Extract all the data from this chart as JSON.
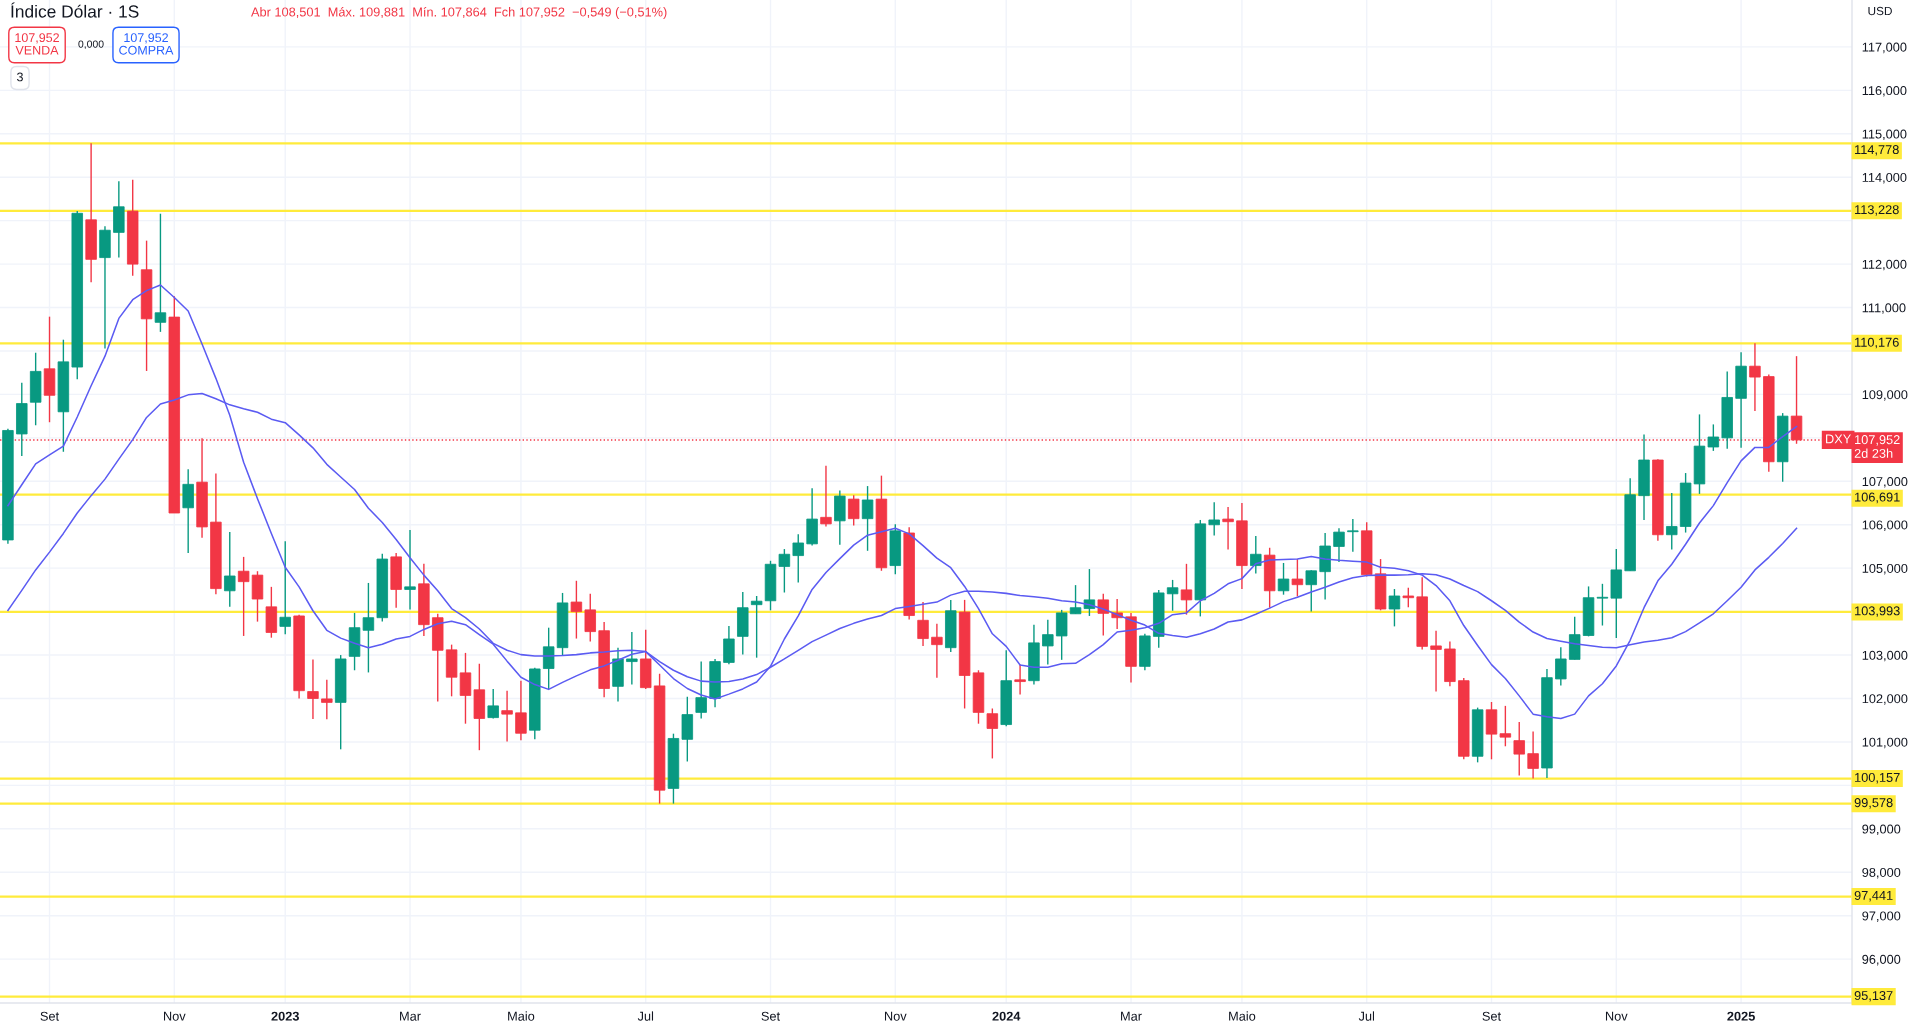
{
  "chart_data": {
    "type": "candlestick",
    "title": "Índice Dólar · 1S",
    "subtitle": "Abr 108,501  Máx. 109,881  Mín. 107,864  Fch 107,952  −0,549 (−0,51%)",
    "x": [
      "2022-08-15",
      "2022-08-22",
      "2022-08-29",
      "2022-09-05",
      "2022-09-12",
      "2022-09-19",
      "2022-09-26",
      "2022-10-03",
      "2022-10-10",
      "2022-10-17",
      "2022-10-24",
      "2022-10-31",
      "2022-11-07",
      "2022-11-14",
      "2022-11-21",
      "2022-11-28",
      "2022-12-05",
      "2022-12-12",
      "2022-12-19",
      "2022-12-26",
      "2023-01-02",
      "2023-01-09",
      "2023-01-16",
      "2023-01-23",
      "2023-01-30",
      "2023-02-06",
      "2023-02-13",
      "2023-02-20",
      "2023-02-27",
      "2023-03-06",
      "2023-03-13",
      "2023-03-20",
      "2023-03-27",
      "2023-04-03",
      "2023-04-10",
      "2023-04-17",
      "2023-04-24",
      "2023-05-01",
      "2023-05-08",
      "2023-05-15",
      "2023-05-22",
      "2023-05-29",
      "2023-06-05",
      "2023-06-12",
      "2023-06-19",
      "2023-06-26",
      "2023-07-03",
      "2023-07-10",
      "2023-07-17",
      "2023-07-24",
      "2023-07-31",
      "2023-08-07",
      "2023-08-14",
      "2023-08-21",
      "2023-08-28",
      "2023-09-04",
      "2023-09-11",
      "2023-09-18",
      "2023-09-25",
      "2023-10-02",
      "2023-10-09",
      "2023-10-16",
      "2023-10-23",
      "2023-10-30",
      "2023-11-06",
      "2023-11-13",
      "2023-11-20",
      "2023-11-27",
      "2023-12-04",
      "2023-12-11",
      "2023-12-18",
      "2023-12-25",
      "2024-01-01",
      "2024-01-08",
      "2024-01-15",
      "2024-01-22",
      "2024-01-29",
      "2024-02-05",
      "2024-02-12",
      "2024-02-19",
      "2024-02-26",
      "2024-03-04",
      "2024-03-11",
      "2024-03-18",
      "2024-03-25",
      "2024-04-01",
      "2024-04-08",
      "2024-04-15",
      "2024-04-22",
      "2024-04-29",
      "2024-05-06",
      "2024-05-13",
      "2024-05-20",
      "2024-05-27",
      "2024-06-03",
      "2024-06-10",
      "2024-06-17",
      "2024-06-24",
      "2024-07-01",
      "2024-07-08",
      "2024-07-15",
      "2024-07-22",
      "2024-07-29",
      "2024-08-05",
      "2024-08-12",
      "2024-08-19",
      "2024-08-26",
      "2024-09-02",
      "2024-09-09",
      "2024-09-16",
      "2024-09-23",
      "2024-09-30",
      "2024-10-07",
      "2024-10-14",
      "2024-10-21",
      "2024-10-28",
      "2024-11-04",
      "2024-11-11",
      "2024-11-18",
      "2024-11-25",
      "2024-12-02",
      "2024-12-09",
      "2024-12-16",
      "2024-12-23",
      "2024-12-30",
      "2025-01-06",
      "2025-01-13",
      "2025-01-20",
      "2025-01-27",
      "2025-02-03"
    ],
    "ohlc": [
      [
        105.65,
        108.21,
        105.56,
        108.17
      ],
      [
        108.09,
        109.27,
        107.58,
        108.79
      ],
      [
        108.82,
        109.96,
        108.29,
        109.53
      ],
      [
        109.59,
        110.79,
        108.36,
        108.98
      ],
      [
        108.6,
        110.26,
        107.68,
        109.75
      ],
      [
        109.63,
        113.22,
        109.35,
        113.17
      ],
      [
        113.02,
        114.78,
        111.58,
        112.11
      ],
      [
        112.15,
        112.87,
        110.06,
        112.78
      ],
      [
        112.73,
        113.91,
        112.15,
        113.32
      ],
      [
        113.22,
        113.94,
        111.73,
        112.0
      ],
      [
        111.87,
        112.54,
        109.54,
        110.74
      ],
      [
        110.66,
        113.16,
        110.44,
        110.88
      ],
      [
        110.78,
        111.26,
        106.27,
        106.27
      ],
      [
        106.39,
        107.28,
        105.35,
        106.93
      ],
      [
        106.98,
        107.99,
        105.7,
        105.95
      ],
      [
        106.06,
        107.18,
        104.4,
        104.53
      ],
      [
        104.48,
        105.83,
        104.11,
        104.82
      ],
      [
        104.93,
        105.26,
        103.44,
        104.69
      ],
      [
        104.84,
        104.93,
        103.77,
        104.29
      ],
      [
        104.11,
        104.57,
        103.4,
        103.52
      ],
      [
        103.66,
        105.62,
        103.48,
        103.87
      ],
      [
        103.9,
        103.93,
        102.0,
        102.18
      ],
      [
        102.16,
        102.9,
        101.53,
        102.0
      ],
      [
        101.99,
        102.43,
        101.52,
        101.91
      ],
      [
        101.91,
        103.0,
        100.83,
        102.91
      ],
      [
        102.97,
        103.97,
        102.65,
        103.63
      ],
      [
        103.57,
        104.66,
        102.6,
        103.86
      ],
      [
        103.86,
        105.33,
        103.77,
        105.21
      ],
      [
        105.26,
        105.35,
        104.09,
        104.51
      ],
      [
        104.51,
        105.88,
        104.05,
        104.57
      ],
      [
        104.64,
        105.1,
        103.44,
        103.7
      ],
      [
        103.86,
        103.95,
        101.93,
        103.11
      ],
      [
        103.12,
        103.24,
        102.05,
        102.49
      ],
      [
        102.59,
        103.05,
        101.42,
        102.07
      ],
      [
        102.2,
        102.8,
        100.81,
        101.54
      ],
      [
        101.56,
        102.22,
        101.54,
        101.83
      ],
      [
        101.72,
        102.18,
        101.01,
        101.64
      ],
      [
        101.67,
        102.41,
        101.04,
        101.2
      ],
      [
        101.27,
        102.71,
        101.06,
        102.68
      ],
      [
        102.69,
        103.63,
        102.22,
        103.19
      ],
      [
        103.17,
        104.43,
        102.98,
        104.2
      ],
      [
        104.22,
        104.71,
        103.38,
        104.0
      ],
      [
        104.04,
        104.41,
        103.31,
        103.54
      ],
      [
        103.56,
        103.76,
        102.03,
        102.23
      ],
      [
        102.28,
        103.17,
        101.93,
        102.91
      ],
      [
        102.85,
        103.53,
        102.32,
        102.91
      ],
      [
        102.91,
        103.58,
        102.22,
        102.25
      ],
      [
        102.29,
        102.57,
        99.58,
        99.89
      ],
      [
        99.93,
        101.19,
        99.58,
        101.08
      ],
      [
        101.06,
        102.04,
        100.55,
        101.63
      ],
      [
        101.68,
        102.85,
        101.54,
        102.02
      ],
      [
        102.0,
        102.91,
        101.8,
        102.85
      ],
      [
        102.83,
        103.67,
        102.79,
        103.37
      ],
      [
        103.43,
        104.45,
        103.01,
        104.09
      ],
      [
        104.16,
        104.36,
        102.94,
        104.24
      ],
      [
        104.25,
        105.17,
        104.03,
        105.09
      ],
      [
        105.04,
        105.44,
        104.44,
        105.32
      ],
      [
        105.29,
        105.78,
        104.67,
        105.58
      ],
      [
        105.56,
        106.84,
        105.52,
        106.13
      ],
      [
        106.17,
        107.36,
        105.96,
        106.02
      ],
      [
        106.09,
        106.79,
        105.54,
        106.66
      ],
      [
        106.59,
        106.68,
        105.98,
        106.14
      ],
      [
        106.14,
        106.89,
        105.4,
        106.57
      ],
      [
        106.59,
        107.13,
        104.94,
        105.01
      ],
      [
        105.06,
        106.01,
        104.86,
        105.86
      ],
      [
        105.81,
        105.94,
        103.82,
        103.91
      ],
      [
        103.8,
        104.22,
        103.21,
        103.38
      ],
      [
        103.41,
        103.72,
        102.48,
        103.24
      ],
      [
        103.17,
        104.27,
        103.07,
        104.02
      ],
      [
        103.99,
        104.27,
        101.77,
        102.53
      ],
      [
        102.59,
        102.65,
        101.42,
        101.68
      ],
      [
        101.65,
        101.77,
        100.62,
        101.31
      ],
      [
        101.4,
        103.11,
        101.36,
        102.41
      ],
      [
        102.43,
        102.78,
        102.09,
        102.39
      ],
      [
        102.41,
        103.7,
        102.32,
        103.28
      ],
      [
        103.21,
        103.81,
        102.78,
        103.47
      ],
      [
        103.44,
        104.04,
        102.89,
        103.97
      ],
      [
        103.95,
        104.61,
        103.95,
        104.09
      ],
      [
        104.07,
        104.98,
        103.9,
        104.27
      ],
      [
        104.27,
        104.41,
        103.45,
        103.96
      ],
      [
        103.97,
        104.29,
        103.6,
        103.86
      ],
      [
        103.88,
        103.97,
        102.37,
        102.74
      ],
      [
        102.74,
        103.49,
        102.65,
        103.44
      ],
      [
        103.43,
        104.5,
        103.17,
        104.43
      ],
      [
        104.41,
        104.73,
        104.02,
        104.55
      ],
      [
        104.5,
        105.1,
        103.93,
        104.27
      ],
      [
        104.27,
        106.11,
        103.89,
        106.02
      ],
      [
        106.0,
        106.52,
        105.75,
        106.11
      ],
      [
        106.13,
        106.41,
        105.43,
        106.07
      ],
      [
        106.09,
        106.5,
        104.52,
        105.06
      ],
      [
        105.06,
        105.74,
        104.88,
        105.32
      ],
      [
        105.3,
        105.47,
        104.09,
        104.48
      ],
      [
        104.48,
        105.12,
        104.39,
        104.75
      ],
      [
        104.75,
        105.21,
        104.35,
        104.62
      ],
      [
        104.62,
        104.95,
        104.0,
        104.94
      ],
      [
        104.92,
        105.81,
        104.28,
        105.51
      ],
      [
        105.5,
        105.92,
        105.14,
        105.83
      ],
      [
        105.84,
        106.13,
        105.38,
        105.86
      ],
      [
        105.86,
        106.06,
        104.81,
        104.85
      ],
      [
        104.87,
        105.21,
        104.03,
        104.06
      ],
      [
        104.06,
        104.52,
        103.66,
        104.36
      ],
      [
        104.36,
        104.55,
        104.1,
        104.32
      ],
      [
        104.34,
        104.79,
        103.13,
        103.2
      ],
      [
        103.21,
        103.56,
        102.16,
        103.13
      ],
      [
        103.14,
        103.31,
        102.28,
        102.39
      ],
      [
        102.41,
        102.47,
        100.6,
        100.67
      ],
      [
        100.67,
        101.79,
        100.53,
        101.74
      ],
      [
        101.74,
        101.92,
        100.6,
        101.18
      ],
      [
        101.19,
        101.83,
        100.9,
        101.11
      ],
      [
        101.03,
        101.46,
        100.23,
        100.72
      ],
      [
        100.73,
        101.24,
        100.16,
        100.39
      ],
      [
        100.4,
        102.68,
        100.17,
        102.48
      ],
      [
        102.45,
        103.18,
        102.3,
        102.91
      ],
      [
        102.9,
        103.88,
        102.9,
        103.47
      ],
      [
        103.45,
        104.58,
        103.43,
        104.32
      ],
      [
        104.31,
        104.64,
        103.68,
        104.33
      ],
      [
        104.31,
        105.44,
        103.39,
        104.96
      ],
      [
        104.94,
        107.07,
        104.94,
        106.69
      ],
      [
        106.67,
        108.08,
        106.11,
        107.49
      ],
      [
        107.49,
        107.51,
        105.63,
        105.77
      ],
      [
        105.77,
        106.73,
        105.43,
        105.96
      ],
      [
        105.96,
        107.19,
        105.82,
        106.96
      ],
      [
        106.94,
        108.54,
        106.71,
        107.81
      ],
      [
        107.79,
        108.31,
        107.7,
        108.02
      ],
      [
        108.0,
        109.53,
        107.75,
        108.93
      ],
      [
        108.91,
        109.97,
        107.77,
        109.65
      ],
      [
        109.65,
        110.18,
        108.62,
        109.4
      ],
      [
        109.41,
        109.46,
        107.22,
        107.45
      ],
      [
        107.45,
        108.57,
        106.99,
        108.5
      ],
      [
        108.501,
        109.881,
        107.864,
        107.952
      ]
    ],
    "series": [
      {
        "type": "line",
        "color": "#5b5bf2",
        "values": [
          106.44,
          106.92,
          107.4,
          107.61,
          107.81,
          108.48,
          109.2,
          109.88,
          110.75,
          111.18,
          111.39,
          111.52,
          111.23,
          110.92,
          110.16,
          109.37,
          108.52,
          107.44,
          106.6,
          105.8,
          105.02,
          104.57,
          104.02,
          103.57,
          103.39,
          103.27,
          103.17,
          103.25,
          103.37,
          103.43,
          103.59,
          103.72,
          103.78,
          103.7,
          103.47,
          103.25,
          102.86,
          102.49,
          102.32,
          102.21,
          102.37,
          102.52,
          102.66,
          102.75,
          102.88,
          103.02,
          103.08,
          102.77,
          102.46,
          102.23,
          102.08,
          101.99,
          102.1,
          102.22,
          102.38,
          102.74,
          103.37,
          103.9,
          104.51,
          104.9,
          105.22,
          105.53,
          105.76,
          105.84,
          105.92,
          105.79,
          105.52,
          105.23,
          105.01,
          104.58,
          104.07,
          103.49,
          103.2,
          102.77,
          102.72,
          102.72,
          102.8,
          102.81,
          103.01,
          103.24,
          103.53,
          103.57,
          103.63,
          103.73,
          103.93,
          103.97,
          104.25,
          104.42,
          104.64,
          104.76,
          105.1,
          105.19,
          105.2,
          105.21,
          105.27,
          105.21,
          105.18,
          105.16,
          105.14,
          105.02,
          105.0,
          104.94,
          104.84,
          104.6,
          104.25,
          103.68,
          103.22,
          102.78,
          102.46,
          102.06,
          101.64,
          101.58,
          101.54,
          101.64,
          102.06,
          102.34,
          102.75,
          103.34,
          104.09,
          104.71,
          105.09,
          105.55,
          106.04,
          106.44,
          106.97,
          107.47,
          107.78,
          107.78,
          108.03,
          108.26
        ]
      },
      {
        "type": "line",
        "color": "#5b5bf2",
        "values": [
          104.03,
          104.49,
          104.96,
          105.37,
          105.8,
          106.27,
          106.67,
          107.05,
          107.51,
          107.96,
          108.47,
          108.78,
          108.87,
          108.99,
          109.02,
          108.9,
          108.76,
          108.67,
          108.59,
          108.43,
          108.35,
          108.07,
          107.77,
          107.39,
          107.1,
          106.81,
          106.38,
          106.05,
          105.66,
          105.24,
          104.84,
          104.48,
          104.07,
          103.86,
          103.6,
          103.27,
          103.11,
          103.01,
          102.98,
          102.98,
          102.99,
          103.01,
          103.05,
          103.07,
          103.1,
          103.11,
          103.08,
          102.85,
          102.65,
          102.5,
          102.4,
          102.38,
          102.39,
          102.45,
          102.55,
          102.72,
          102.91,
          103.11,
          103.31,
          103.46,
          103.61,
          103.73,
          103.83,
          103.91,
          104.07,
          104.12,
          104.17,
          104.22,
          104.38,
          104.47,
          104.47,
          104.45,
          104.42,
          104.37,
          104.34,
          104.31,
          104.25,
          104.22,
          104.16,
          104.06,
          103.93,
          103.8,
          103.69,
          103.5,
          103.45,
          103.41,
          103.49,
          103.6,
          103.76,
          103.81,
          103.94,
          104.08,
          104.23,
          104.33,
          104.45,
          104.56,
          104.68,
          104.78,
          104.83,
          104.84,
          104.84,
          104.85,
          104.87,
          104.85,
          104.75,
          104.6,
          104.46,
          104.25,
          104.03,
          103.76,
          103.53,
          103.38,
          103.32,
          103.26,
          103.22,
          103.18,
          103.17,
          103.24,
          103.3,
          103.34,
          103.4,
          103.54,
          103.74,
          103.95,
          104.25,
          104.56,
          104.96,
          105.25,
          105.57,
          105.92
        ]
      }
    ],
    "xlim": [
      "2022-08-11",
      "2025-03-03"
    ],
    "ylim": [
      94.99,
      118.08
    ],
    "xticks": [
      {
        "value": "2022-09-05",
        "label": "Set"
      },
      {
        "value": "2022-11-07",
        "label": "Nov"
      },
      {
        "value": "2023-01-02",
        "label": "2023"
      },
      {
        "value": "2023-03-06",
        "label": "Mar"
      },
      {
        "value": "2023-05-01",
        "label": "Maio"
      },
      {
        "value": "2023-07-03",
        "label": "Jul"
      },
      {
        "value": "2023-09-04",
        "label": "Set"
      },
      {
        "value": "2023-11-06",
        "label": "Nov"
      },
      {
        "value": "2024-01-01",
        "label": "2024"
      },
      {
        "value": "2024-03-04",
        "label": "Mar"
      },
      {
        "value": "2024-04-29",
        "label": "Maio"
      },
      {
        "value": "2024-07-01",
        "label": "Jul"
      },
      {
        "value": "2024-09-02",
        "label": "Set"
      },
      {
        "value": "2024-11-04",
        "label": "Nov"
      },
      {
        "value": "2025-01-06",
        "label": "2025"
      }
    ],
    "yticks": [
      {
        "value": 96,
        "label": "96,000"
      },
      {
        "value": 97,
        "label": "97,000"
      },
      {
        "value": 98,
        "label": "98,000"
      },
      {
        "value": 99,
        "label": "99,000"
      },
      {
        "value": 100,
        "label": null
      },
      {
        "value": 101,
        "label": "101,000"
      },
      {
        "value": 102,
        "label": "102,000"
      },
      {
        "value": 103,
        "label": "103,000"
      },
      {
        "value": 104,
        "label": null
      },
      {
        "value": 105,
        "label": "105,000"
      },
      {
        "value": 106,
        "label": "106,000"
      },
      {
        "value": 107,
        "label": "107,000"
      },
      {
        "value": 108,
        "label": null
      },
      {
        "value": 109,
        "label": "109,000"
      },
      {
        "value": 110,
        "label": null
      },
      {
        "value": 111,
        "label": "111,000"
      },
      {
        "value": 112,
        "label": "112,000"
      },
      {
        "value": 113,
        "label": null
      },
      {
        "value": 114,
        "label": "114,000"
      },
      {
        "value": 115,
        "label": "115,000"
      },
      {
        "value": 116,
        "label": "116,000"
      },
      {
        "value": 117,
        "label": "117,000"
      }
    ],
    "grid": true,
    "ref_lines": [
      {
        "axis": "y",
        "value": 114.778,
        "label": "114,778",
        "color": "#ffeb3b"
      },
      {
        "axis": "y",
        "value": 113.228,
        "label": "113,228",
        "color": "#ffeb3b"
      },
      {
        "axis": "y",
        "value": 110.176,
        "label": "110,176",
        "color": "#ffeb3b"
      },
      {
        "axis": "y",
        "value": 106.691,
        "label": "106,691",
        "color": "#ffeb3b"
      },
      {
        "axis": "y",
        "value": 103.993,
        "label": "103,993",
        "color": "#ffeb3b"
      },
      {
        "axis": "y",
        "value": 100.157,
        "label": "100,157",
        "color": "#ffeb3b"
      },
      {
        "axis": "y",
        "value": 99.578,
        "label": "99,578",
        "color": "#ffeb3b"
      },
      {
        "axis": "y",
        "value": 97.441,
        "label": "97,441",
        "color": "#ffeb3b"
      },
      {
        "axis": "y",
        "value": 95.137,
        "label": "95,137",
        "color": "#ffeb3b"
      },
      {
        "axis": "y",
        "value": 107.952,
        "label": "107,952\n2d 23h",
        "color": "#f23645",
        "line_style": "dotted"
      }
    ],
    "annotations": [
      "107,952\nVENDA",
      "0,000",
      "107,952\nCOMPRA",
      "3",
      "USD",
      {
        "text": "DXY",
        "x": "2025-02-24",
        "y": 107.952
      }
    ]
  }
}
